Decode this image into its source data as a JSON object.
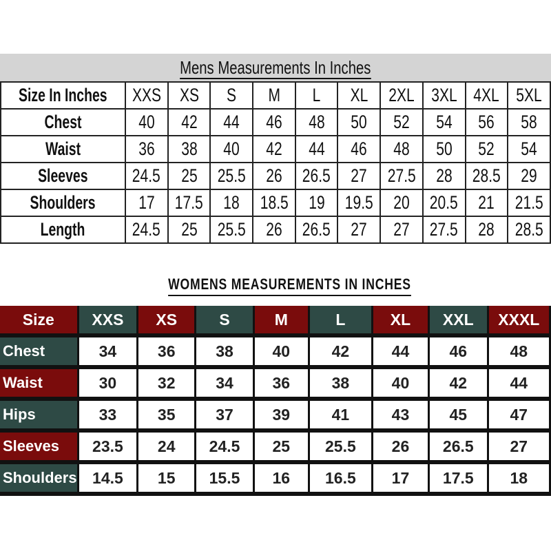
{
  "mens": {
    "title": "Mens Measurements In Inches",
    "header_label": "Size In Inches",
    "sizes": [
      "XXS",
      "XS",
      "S",
      "M",
      "L",
      "XL",
      "2XL",
      "3XL",
      "4XL",
      "5XL"
    ],
    "rows": [
      {
        "label": "Chest",
        "values": [
          "40",
          "42",
          "44",
          "46",
          "48",
          "50",
          "52",
          "54",
          "56",
          "58"
        ]
      },
      {
        "label": "Waist",
        "values": [
          "36",
          "38",
          "40",
          "42",
          "44",
          "46",
          "48",
          "50",
          "52",
          "54"
        ]
      },
      {
        "label": "Sleeves",
        "values": [
          "24.5",
          "25",
          "25.5",
          "26",
          "26.5",
          "27",
          "27.5",
          "28",
          "28.5",
          "29"
        ]
      },
      {
        "label": "Shoulders",
        "values": [
          "17",
          "17.5",
          "18",
          "18.5",
          "19",
          "19.5",
          "20",
          "20.5",
          "21",
          "21.5"
        ]
      },
      {
        "label": "Length",
        "values": [
          "24.5",
          "25",
          "25.5",
          "26",
          "26.5",
          "27",
          "27",
          "27.5",
          "28",
          "28.5"
        ]
      }
    ]
  },
  "womens": {
    "title": "WOMENS MEASUREMENTS IN INCHES",
    "header_label": "Size",
    "sizes": [
      "XXS",
      "XS",
      "S",
      "M",
      "L",
      "XL",
      "XXL",
      "XXXL"
    ],
    "rows": [
      {
        "label": "Chest",
        "values": [
          "34",
          "36",
          "38",
          "40",
          "42",
          "44",
          "46",
          "48"
        ]
      },
      {
        "label": "Waist",
        "values": [
          "30",
          "32",
          "34",
          "36",
          "38",
          "40",
          "42",
          "44"
        ]
      },
      {
        "label": "Hips",
        "values": [
          "33",
          "35",
          "37",
          "39",
          "41",
          "43",
          "45",
          "47"
        ]
      },
      {
        "label": "Sleeves",
        "values": [
          "23.5",
          "24",
          "24.5",
          "25",
          "25.5",
          "26",
          "26.5",
          "27"
        ]
      },
      {
        "label": "Shoulders",
        "values": [
          "14.5",
          "15",
          "15.5",
          "16",
          "16.5",
          "17",
          "17.5",
          "18"
        ]
      }
    ]
  },
  "colors": {
    "red": "#7a0c0c",
    "green": "#2e4a45",
    "title_bar": "#d4d4d4"
  }
}
